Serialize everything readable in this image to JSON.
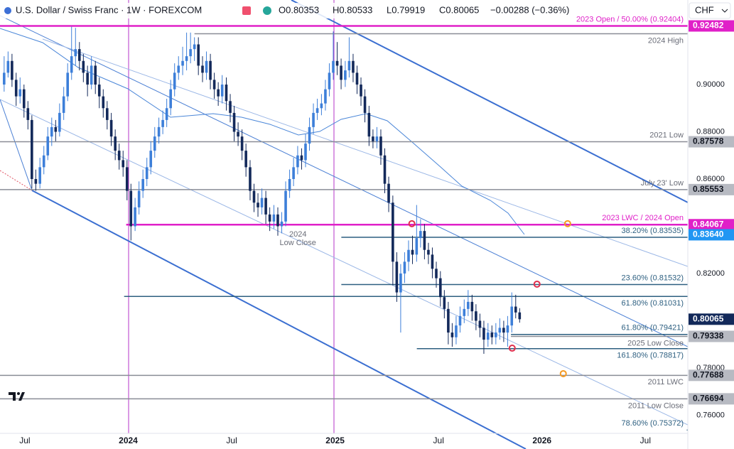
{
  "header": {
    "symbol": "U.S. Dollar / Swiss Franc · 1W · FOREXCOM",
    "open": "O0.80353",
    "high": "H0.80533",
    "low": "L0.79919",
    "close": "C0.80065",
    "change": "−0.00288 (−0.36%)",
    "currency": "CHF"
  },
  "chart_data": {
    "type": "candlestick",
    "xlim": [
      2023.38,
      2026.705
    ],
    "ylim": [
      0.7457,
      0.9358
    ],
    "xticks": [
      {
        "value": 2023.5,
        "label": "Jul"
      },
      2024,
      {
        "value": 2024.5,
        "label": "Jul"
      },
      2025,
      {
        "value": 2025.5,
        "label": "Jul"
      },
      2026,
      {
        "value": 2026.5,
        "label": "Jul"
      }
    ],
    "yticks": [
      {
        "value": 0.9,
        "label": "0.90000"
      },
      {
        "value": 0.88,
        "label": "0.88000"
      },
      {
        "value": 0.86,
        "label": "0.86000"
      },
      {
        "value": 0.82,
        "label": "0.82000"
      },
      {
        "value": 0.78,
        "label": "0.78000"
      },
      {
        "value": 0.76,
        "label": "0.76000"
      }
    ],
    "up_color": "#3d7fd9",
    "down_color": "#13295a",
    "x": [
      2023.4,
      2023.419,
      2023.438,
      2023.458,
      2023.477,
      2023.496,
      2023.515,
      2023.534,
      2023.553,
      2023.573,
      2023.592,
      2023.611,
      2023.63,
      2023.649,
      2023.668,
      2023.688,
      2023.707,
      2023.726,
      2023.745,
      2023.764,
      2023.783,
      2023.803,
      2023.822,
      2023.841,
      2023.86,
      2023.879,
      2023.898,
      2023.918,
      2023.937,
      2023.956,
      2023.975,
      2023.994,
      2024.013,
      2024.033,
      2024.052,
      2024.071,
      2024.09,
      2024.109,
      2024.128,
      2024.148,
      2024.167,
      2024.186,
      2024.205,
      2024.224,
      2024.243,
      2024.263,
      2024.282,
      2024.301,
      2024.32,
      2024.339,
      2024.359,
      2024.378,
      2024.397,
      2024.416,
      2024.435,
      2024.454,
      2024.474,
      2024.493,
      2024.512,
      2024.531,
      2024.55,
      2024.569,
      2024.589,
      2024.608,
      2024.627,
      2024.646,
      2024.665,
      2024.684,
      2024.704,
      2024.723,
      2024.742,
      2024.761,
      2024.78,
      2024.799,
      2024.819,
      2024.838,
      2024.857,
      2024.876,
      2024.895,
      2024.914,
      2024.934,
      2024.953,
      2024.972,
      2024.991,
      2025.01,
      2025.029,
      2025.049,
      2025.068,
      2025.087,
      2025.106,
      2025.125,
      2025.144,
      2025.164,
      2025.183,
      2025.202,
      2025.221,
      2025.24,
      2025.259,
      2025.279,
      2025.298,
      2025.317,
      2025.336,
      2025.355,
      2025.374,
      2025.394,
      2025.413,
      2025.432,
      2025.451,
      2025.47,
      2025.489,
      2025.509,
      2025.528,
      2025.547,
      2025.566,
      2025.585,
      2025.604,
      2025.624,
      2025.643,
      2025.662,
      2025.681,
      2025.7,
      2025.719,
      2025.739,
      2025.758,
      2025.777,
      2025.796,
      2025.815,
      2025.834,
      2025.854,
      2025.873,
      2025.892
    ],
    "ohlc": [
      [
        0.9,
        0.912,
        0.897,
        0.905
      ],
      [
        0.905,
        0.914,
        0.903,
        0.91
      ],
      [
        0.91,
        0.913,
        0.899,
        0.902
      ],
      [
        0.902,
        0.905,
        0.891,
        0.895
      ],
      [
        0.895,
        0.903,
        0.892,
        0.898
      ],
      [
        0.898,
        0.9,
        0.886,
        0.89
      ],
      [
        0.89,
        0.893,
        0.881,
        0.885
      ],
      [
        0.885,
        0.887,
        0.856,
        0.86
      ],
      [
        0.86,
        0.864,
        0.855,
        0.858
      ],
      [
        0.858,
        0.869,
        0.856,
        0.865
      ],
      [
        0.865,
        0.874,
        0.862,
        0.87
      ],
      [
        0.87,
        0.882,
        0.868,
        0.878
      ],
      [
        0.878,
        0.886,
        0.874,
        0.882
      ],
      [
        0.882,
        0.885,
        0.876,
        0.88
      ],
      [
        0.88,
        0.892,
        0.878,
        0.888
      ],
      [
        0.888,
        0.899,
        0.885,
        0.895
      ],
      [
        0.895,
        0.909,
        0.893,
        0.905
      ],
      [
        0.905,
        0.9245,
        0.902,
        0.912
      ],
      [
        0.912,
        0.924,
        0.908,
        0.915
      ],
      [
        0.915,
        0.918,
        0.906,
        0.91
      ],
      [
        0.91,
        0.913,
        0.901,
        0.905
      ],
      [
        0.905,
        0.908,
        0.895,
        0.9
      ],
      [
        0.9,
        0.912,
        0.898,
        0.908
      ],
      [
        0.908,
        0.91,
        0.896,
        0.9
      ],
      [
        0.9,
        0.903,
        0.89,
        0.895
      ],
      [
        0.895,
        0.898,
        0.886,
        0.89
      ],
      [
        0.89,
        0.893,
        0.881,
        0.885
      ],
      [
        0.885,
        0.888,
        0.874,
        0.878
      ],
      [
        0.878,
        0.881,
        0.868,
        0.872
      ],
      [
        0.872,
        0.875,
        0.864,
        0.868
      ],
      [
        0.868,
        0.872,
        0.861,
        0.865
      ],
      [
        0.865,
        0.868,
        0.851,
        0.855
      ],
      [
        0.855,
        0.858,
        0.834,
        0.84
      ],
      [
        0.84,
        0.852,
        0.838,
        0.848
      ],
      [
        0.848,
        0.859,
        0.845,
        0.855
      ],
      [
        0.855,
        0.864,
        0.852,
        0.86
      ],
      [
        0.86,
        0.869,
        0.857,
        0.865
      ],
      [
        0.865,
        0.876,
        0.862,
        0.872
      ],
      [
        0.872,
        0.882,
        0.869,
        0.878
      ],
      [
        0.878,
        0.886,
        0.875,
        0.882
      ],
      [
        0.882,
        0.889,
        0.879,
        0.885
      ],
      [
        0.885,
        0.894,
        0.882,
        0.89
      ],
      [
        0.89,
        0.902,
        0.887,
        0.898
      ],
      [
        0.898,
        0.909,
        0.895,
        0.905
      ],
      [
        0.905,
        0.912,
        0.902,
        0.908
      ],
      [
        0.908,
        0.916,
        0.904,
        0.91
      ],
      [
        0.91,
        0.922,
        0.906,
        0.912
      ],
      [
        0.912,
        0.922,
        0.909,
        0.915
      ],
      [
        0.915,
        0.92,
        0.91,
        0.917
      ],
      [
        0.917,
        0.92,
        0.904,
        0.908
      ],
      [
        0.908,
        0.912,
        0.901,
        0.905
      ],
      [
        0.905,
        0.914,
        0.902,
        0.91
      ],
      [
        0.91,
        0.913,
        0.898,
        0.902
      ],
      [
        0.902,
        0.905,
        0.894,
        0.898
      ],
      [
        0.898,
        0.901,
        0.891,
        0.895
      ],
      [
        0.895,
        0.904,
        0.892,
        0.9
      ],
      [
        0.9,
        0.903,
        0.889,
        0.893
      ],
      [
        0.893,
        0.896,
        0.884,
        0.888
      ],
      [
        0.888,
        0.891,
        0.876,
        0.88
      ],
      [
        0.88,
        0.884,
        0.874,
        0.878
      ],
      [
        0.878,
        0.881,
        0.868,
        0.872
      ],
      [
        0.872,
        0.875,
        0.861,
        0.865
      ],
      [
        0.865,
        0.868,
        0.851,
        0.855
      ],
      [
        0.855,
        0.858,
        0.846,
        0.85
      ],
      [
        0.85,
        0.854,
        0.844,
        0.848
      ],
      [
        0.848,
        0.856,
        0.845,
        0.852
      ],
      [
        0.852,
        0.855,
        0.841,
        0.845
      ],
      [
        0.845,
        0.848,
        0.838,
        0.842
      ],
      [
        0.842,
        0.849,
        0.839,
        0.845
      ],
      [
        0.845,
        0.848,
        0.836,
        0.84
      ],
      [
        0.84,
        0.846,
        0.837,
        0.842
      ],
      [
        0.842,
        0.859,
        0.84,
        0.855
      ],
      [
        0.855,
        0.864,
        0.852,
        0.86
      ],
      [
        0.86,
        0.869,
        0.857,
        0.865
      ],
      [
        0.865,
        0.874,
        0.862,
        0.87
      ],
      [
        0.87,
        0.873,
        0.864,
        0.868
      ],
      [
        0.868,
        0.879,
        0.865,
        0.875
      ],
      [
        0.875,
        0.886,
        0.872,
        0.882
      ],
      [
        0.882,
        0.892,
        0.879,
        0.888
      ],
      [
        0.888,
        0.894,
        0.885,
        0.89
      ],
      [
        0.89,
        0.896,
        0.887,
        0.892
      ],
      [
        0.892,
        0.902,
        0.889,
        0.898
      ],
      [
        0.898,
        0.909,
        0.895,
        0.905
      ],
      [
        0.905,
        0.9225,
        0.902,
        0.91
      ],
      [
        0.91,
        0.918,
        0.904,
        0.908
      ],
      [
        0.908,
        0.911,
        0.898,
        0.902
      ],
      [
        0.902,
        0.91,
        0.899,
        0.906
      ],
      [
        0.906,
        0.92,
        0.903,
        0.91
      ],
      [
        0.91,
        0.913,
        0.901,
        0.905
      ],
      [
        0.905,
        0.908,
        0.896,
        0.9
      ],
      [
        0.9,
        0.903,
        0.891,
        0.895
      ],
      [
        0.895,
        0.898,
        0.884,
        0.888
      ],
      [
        0.888,
        0.891,
        0.874,
        0.878
      ],
      [
        0.878,
        0.881,
        0.873,
        0.876
      ],
      [
        0.876,
        0.882,
        0.873,
        0.878
      ],
      [
        0.878,
        0.881,
        0.866,
        0.87
      ],
      [
        0.87,
        0.873,
        0.854,
        0.858
      ],
      [
        0.858,
        0.861,
        0.846,
        0.85
      ],
      [
        0.85,
        0.853,
        0.815,
        0.825
      ],
      [
        0.825,
        0.829,
        0.808,
        0.812
      ],
      [
        0.812,
        0.824,
        0.795,
        0.82
      ],
      [
        0.82,
        0.829,
        0.816,
        0.825
      ],
      [
        0.825,
        0.834,
        0.821,
        0.83
      ],
      [
        0.83,
        0.836,
        0.824,
        0.828
      ],
      [
        0.828,
        0.849,
        0.825,
        0.835
      ],
      [
        0.835,
        0.843,
        0.831,
        0.838
      ],
      [
        0.838,
        0.841,
        0.826,
        0.83
      ],
      [
        0.83,
        0.833,
        0.824,
        0.828
      ],
      [
        0.828,
        0.831,
        0.818,
        0.822
      ],
      [
        0.822,
        0.825,
        0.814,
        0.818
      ],
      [
        0.818,
        0.821,
        0.806,
        0.81
      ],
      [
        0.81,
        0.813,
        0.801,
        0.805
      ],
      [
        0.805,
        0.808,
        0.79,
        0.795
      ],
      [
        0.795,
        0.799,
        0.789,
        0.793
      ],
      [
        0.793,
        0.802,
        0.79,
        0.798
      ],
      [
        0.798,
        0.806,
        0.795,
        0.802
      ],
      [
        0.802,
        0.809,
        0.799,
        0.805
      ],
      [
        0.805,
        0.813,
        0.802,
        0.808
      ],
      [
        0.808,
        0.811,
        0.8,
        0.804
      ],
      [
        0.804,
        0.807,
        0.796,
        0.8
      ],
      [
        0.8,
        0.803,
        0.793,
        0.797
      ],
      [
        0.797,
        0.8,
        0.786,
        0.792
      ],
      [
        0.792,
        0.799,
        0.789,
        0.795
      ],
      [
        0.795,
        0.798,
        0.79,
        0.793
      ],
      [
        0.793,
        0.799,
        0.79,
        0.795
      ],
      [
        0.795,
        0.801,
        0.792,
        0.797
      ],
      [
        0.797,
        0.8,
        0.791,
        0.795
      ],
      [
        0.795,
        0.802,
        0.789,
        0.798
      ],
      [
        0.798,
        0.812,
        0.795,
        0.806
      ],
      [
        0.806,
        0.811,
        0.801,
        0.8035
      ],
      [
        0.80353,
        0.80533,
        0.79919,
        0.80065
      ]
    ],
    "levels": [
      {
        "label": "2023 Open / 50.00% (0.92404)",
        "value": 0.92482,
        "color": "#e020c8",
        "from": 2023.38,
        "side": "above"
      },
      {
        "label": "2024 High",
        "value": 0.9215,
        "color": "#8a8d96",
        "from": 2024.32,
        "side": "below"
      },
      {
        "label": "2021 Low",
        "value": 0.87578,
        "color": "#8a8d96",
        "from": 2023.38,
        "side": "above"
      },
      {
        "label": "July 23' Low",
        "value": 0.85553,
        "color": "#8a8d96",
        "from": 2023.38,
        "side": "above"
      },
      {
        "label": "2023 LWC / 2024 Open",
        "value": 0.84067,
        "color": "#e020c8",
        "from": 2023.99,
        "side": "above"
      },
      {
        "label": "38.20% (0.83535)",
        "value": 0.83535,
        "color": "#2d5f80",
        "from": 2025.03,
        "side": "above"
      },
      {
        "label": "23.60% (0.81532)",
        "value": 0.81532,
        "color": "#2d5f80",
        "from": 2025.03,
        "side": "above"
      },
      {
        "label": "61.80% (0.81031)",
        "value": 0.81031,
        "color": "#2d5f80",
        "from": 2023.98,
        "side": "below"
      },
      {
        "label": "61.80% (0.79421)",
        "value": 0.79421,
        "color": "#2d5f80",
        "from": 2025.85,
        "side": "above"
      },
      {
        "label": "2025 Low Close",
        "value": 0.79338,
        "color": "#8a8d96",
        "from": 2025.85,
        "side": "below"
      },
      {
        "label": "161.80% (0.78817)",
        "value": 0.78817,
        "color": "#2d5f80",
        "from": 2025.395,
        "side": "below"
      },
      {
        "label": "2011 LWC",
        "value": 0.77688,
        "color": "#8a8d96",
        "from": 2023.38,
        "side": "below"
      },
      {
        "label": "2011 Low Close",
        "value": 0.76694,
        "color": "#8a8d96",
        "from": 2023.38,
        "side": "below"
      },
      {
        "label": "78.60% (0.75372)",
        "value": 0.75372,
        "color": "#2d5f80",
        "from": 2026.7,
        "side": "above"
      }
    ],
    "price_tags": [
      {
        "price": 0.92482,
        "color": "#e020c8",
        "text_color": "#ffffff"
      },
      {
        "price": 0.87578,
        "color": "#b7bac2",
        "text_color": "#131722"
      },
      {
        "price": 0.85553,
        "color": "#b7bac2",
        "text_color": "#131722"
      },
      {
        "price": 0.84067,
        "color": "#e020c8",
        "text_color": "#ffffff"
      },
      {
        "price": 0.8364,
        "label": "0.83640",
        "color": "#2196f3",
        "text_color": "#ffffff"
      },
      {
        "price": 0.80065,
        "color": "#13295a",
        "text_color": "#ffffff"
      },
      {
        "price": 0.79338,
        "color": "#b7bac2",
        "text_color": "#131722"
      },
      {
        "price": 0.77688,
        "color": "#b7bac2",
        "text_color": "#131722"
      },
      {
        "price": 0.76694,
        "color": "#b7bac2",
        "text_color": "#131722"
      }
    ],
    "markers": [
      {
        "x": 2025.371,
        "y": 0.8411,
        "color": "#e0304e"
      },
      {
        "x": 2025.976,
        "y": 0.8155,
        "color": "#e0304e"
      },
      {
        "x": 2025.856,
        "y": 0.7884,
        "color": "#e0304e"
      },
      {
        "x": 2026.124,
        "y": 0.8411,
        "color": "#f59a23"
      },
      {
        "x": 2026.103,
        "y": 0.7776,
        "color": "#f59a23"
      }
    ],
    "annotations": [
      {
        "lines": [
          "2024",
          "Low Close"
        ],
        "x": 2024.82,
        "y": 0.8365
      }
    ]
  }
}
